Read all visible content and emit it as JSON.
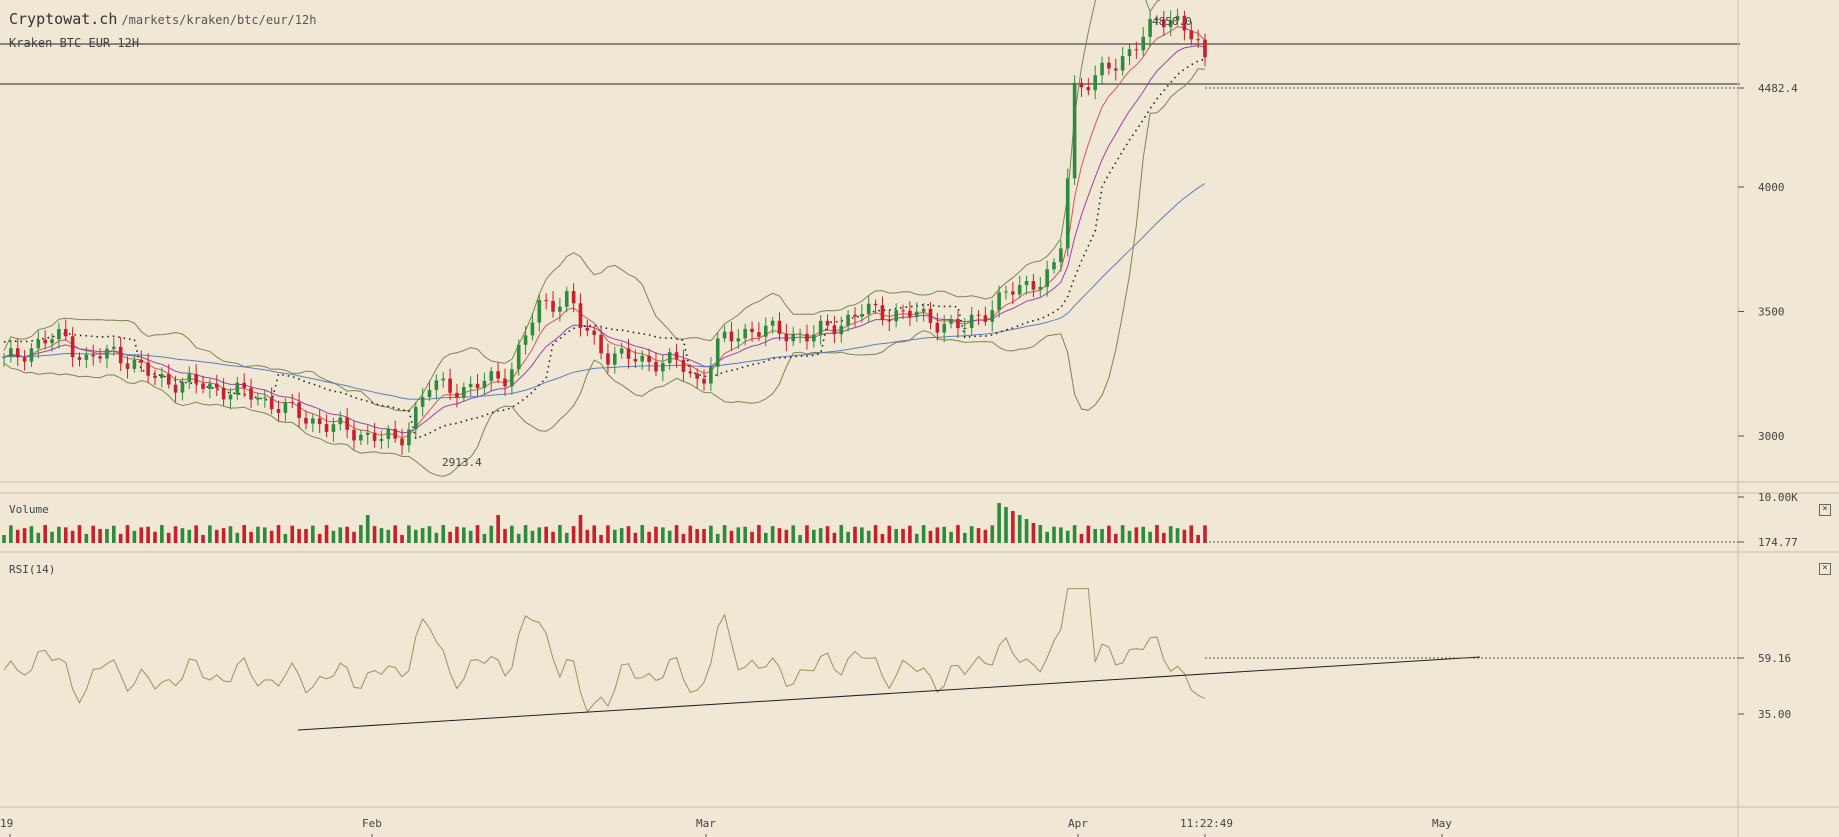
{
  "header": {
    "site": "Cryptowat.ch",
    "path": "/markets/kraken/btc/eur/12h",
    "pair": "Kraken BTC EUR 12H"
  },
  "price_axis": {
    "ticks": [
      "4000",
      "3500",
      "3000"
    ],
    "current_price": "4482.4",
    "high_annotation": "4850.0",
    "low_annotation": "2913.4"
  },
  "volume_panel": {
    "label": "Volume",
    "max_label": "10.00K",
    "current_label": "174.77"
  },
  "rsi_panel": {
    "label": "RSI(14)",
    "current_label": "59.16",
    "level_label": "35.00"
  },
  "time_axis": {
    "labels": [
      "19",
      "Feb",
      "Mar",
      "Apr",
      "May"
    ],
    "cursor_time": "11:22:49"
  },
  "colors": {
    "background": "#f0e7d4",
    "up": "#2e8b3e",
    "down": "#c8202a",
    "bollinger": "#7d8550",
    "ema_fast": "#d45858",
    "ema_mid": "#a040b0",
    "sma_slow": "#5b7fc4",
    "rsi_line": "#9a9455"
  },
  "chart_data": {
    "type": "candlestick",
    "price_ticks": [
      3000,
      3500,
      4000
    ],
    "price_range": [
      2850,
      4900
    ],
    "high": 4850.0,
    "low": 2913.4,
    "last": 4482.4,
    "volume_max": 10000,
    "volume_last": 174.77,
    "rsi_last": 59.16,
    "rsi_level": 35.0,
    "x_labels": [
      "Feb",
      "Mar",
      "Apr",
      "May"
    ]
  }
}
